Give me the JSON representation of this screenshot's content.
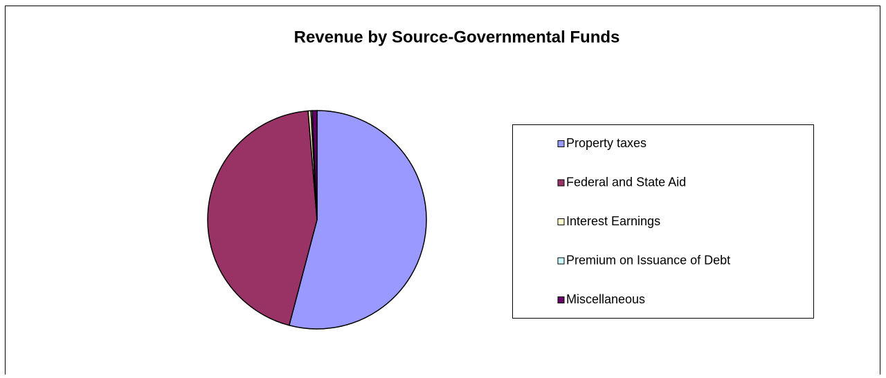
{
  "chart_data": {
    "type": "pie",
    "title": "Revenue by Source-Governmental Funds",
    "categories": [
      "Property taxes",
      "Federal and State Aid",
      "Interest Earnings",
      "Premium on Issuance of Debt",
      "Miscellaneous"
    ],
    "values": [
      54.1,
      44.6,
      0.4,
      0.2,
      0.7
    ],
    "colors": [
      "#9999ff",
      "#993366",
      "#ffffcc",
      "#ccffff",
      "#660066"
    ],
    "legend": "right"
  }
}
